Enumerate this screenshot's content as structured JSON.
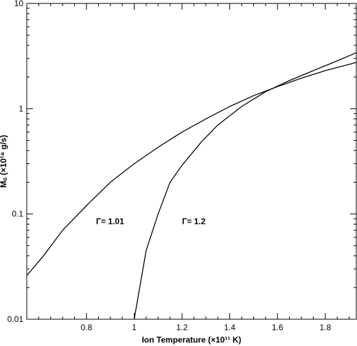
{
  "chart_data": {
    "type": "line",
    "title": "",
    "xlabel": "Ion Temperature (×10¹¹ K)",
    "ylabel": "Ṁₒ (×10¹⁸ g/s)",
    "xlim": [
      0.55,
      1.93
    ],
    "ylim": [
      0.01,
      10
    ],
    "yscale": "log",
    "x_ticks": [
      0.8,
      1,
      1.2,
      1.4,
      1.6,
      1.8
    ],
    "y_ticks": [
      0.01,
      0.1,
      1,
      10
    ],
    "x_tick_labels": [
      "0.8",
      "1",
      "1.2",
      "1.4",
      "1.6",
      "1.8"
    ],
    "y_tick_labels": [
      "0.01",
      "0.1",
      "1",
      "10"
    ],
    "grid": false,
    "series": [
      {
        "name": "Γ= 1.01",
        "x": [
          0.55,
          0.62,
          0.7,
          0.8,
          0.9,
          1.0,
          1.1,
          1.2,
          1.3,
          1.4,
          1.5,
          1.6,
          1.7,
          1.8,
          1.93
        ],
        "y": [
          0.026,
          0.04,
          0.07,
          0.12,
          0.2,
          0.3,
          0.43,
          0.6,
          0.8,
          1.05,
          1.33,
          1.62,
          1.95,
          2.3,
          2.75
        ]
      },
      {
        "name": "Γ= 1.2",
        "x": [
          1.0,
          1.05,
          1.1,
          1.15,
          1.2,
          1.28,
          1.35,
          1.45,
          1.55,
          1.65,
          1.75,
          1.85,
          1.93
        ],
        "y": [
          0.01,
          0.045,
          0.1,
          0.2,
          0.29,
          0.48,
          0.7,
          1.05,
          1.45,
          1.85,
          2.3,
          2.85,
          3.4
        ]
      }
    ],
    "annotations": [
      {
        "text": "Γ= 1.01",
        "x": 0.84,
        "y": 0.085
      },
      {
        "text": "Γ= 1.2",
        "x": 1.2,
        "y": 0.085
      }
    ]
  }
}
